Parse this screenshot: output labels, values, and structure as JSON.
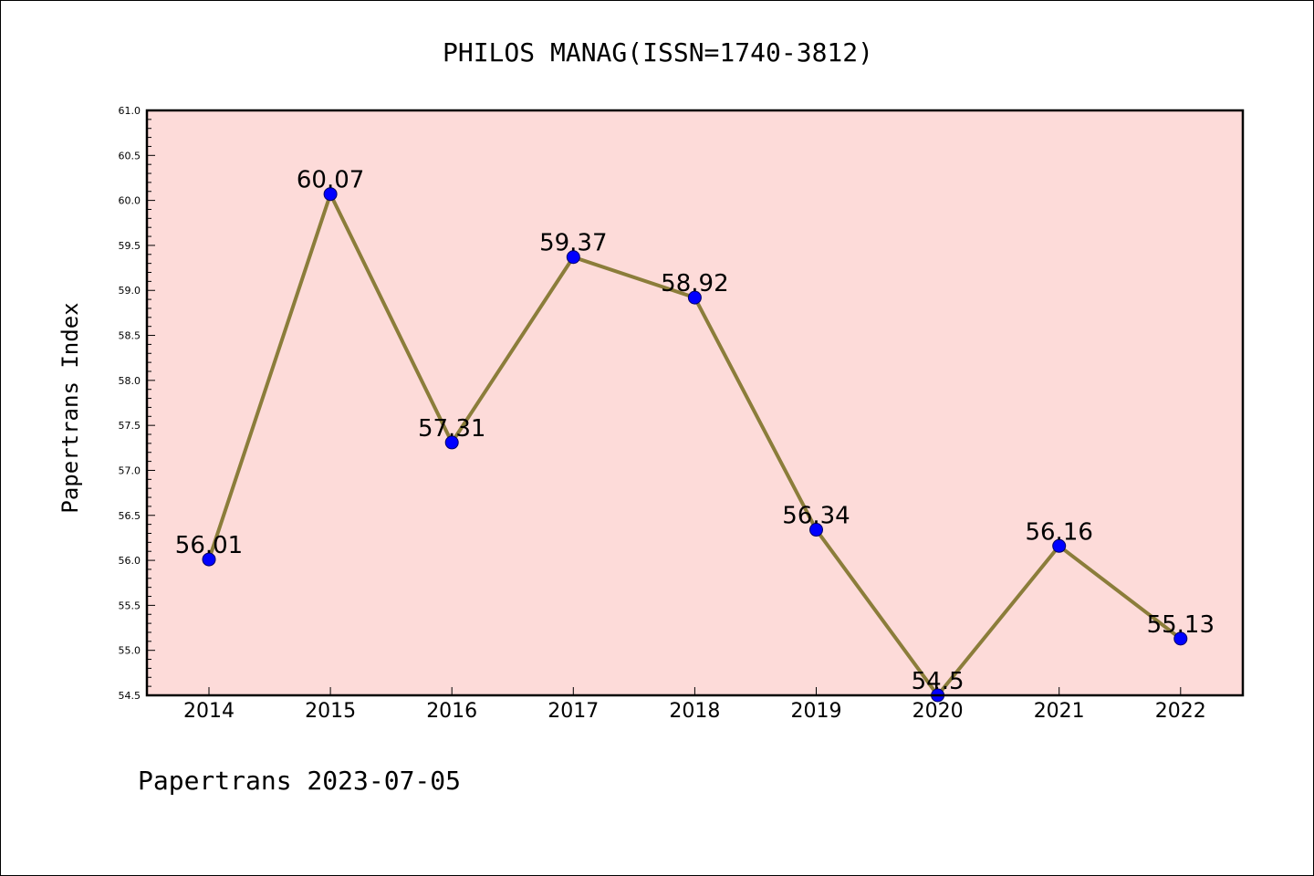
{
  "chart_data": {
    "type": "line",
    "title": "PHILOS MANAG(ISSN=1740-3812)",
    "ylabel": "Papertrans Index",
    "xlabel": "",
    "footer": "Papertrans 2023-07-05",
    "categories": [
      "2014",
      "2015",
      "2016",
      "2017",
      "2018",
      "2019",
      "2020",
      "2021",
      "2022"
    ],
    "values": [
      56.01,
      60.07,
      57.31,
      59.37,
      58.92,
      56.34,
      54.5,
      56.16,
      55.13
    ],
    "data_labels": [
      "56.01",
      "60.07",
      "57.31",
      "59.37",
      "58.92",
      "56.34",
      "54.5",
      "56.16",
      "55.13"
    ],
    "ylim": [
      54.5,
      61.0
    ],
    "yticks": [
      "54.5",
      "55.0",
      "55.5",
      "56.0",
      "56.5",
      "57.0",
      "57.5",
      "58.0",
      "58.5",
      "59.0",
      "59.5",
      "60.0",
      "60.5",
      "61.0"
    ],
    "grid": false,
    "legend": "none",
    "colors": {
      "plot_background": "#fddbd9",
      "line": "#8b7d3a",
      "marker": "#0000ff",
      "axes": "#000000"
    }
  }
}
